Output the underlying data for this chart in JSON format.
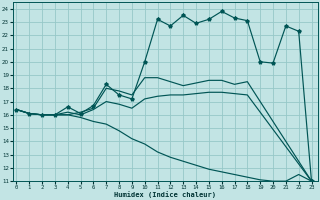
{
  "xlabel": "Humidex (Indice chaleur)",
  "xlim": [
    -0.3,
    23.5
  ],
  "ylim": [
    11,
    24.5
  ],
  "yticks": [
    11,
    12,
    13,
    14,
    15,
    16,
    17,
    18,
    19,
    20,
    21,
    22,
    23,
    24
  ],
  "xticks": [
    0,
    1,
    2,
    3,
    4,
    5,
    6,
    7,
    8,
    9,
    10,
    11,
    12,
    13,
    14,
    15,
    16,
    17,
    18,
    19,
    20,
    21,
    22,
    23
  ],
  "bg_color": "#c2e4e4",
  "grid_color": "#96c8c8",
  "line_color": "#005555",
  "curve1_x": [
    0,
    1,
    2,
    3,
    4,
    5,
    6,
    7,
    8,
    9,
    10,
    11,
    12,
    13,
    14,
    15,
    16,
    17,
    18,
    19,
    20,
    21,
    22,
    23
  ],
  "curve1_y": [
    16.4,
    16.1,
    16.0,
    16.0,
    16.6,
    16.1,
    16.7,
    18.3,
    17.5,
    17.2,
    20.0,
    23.2,
    22.7,
    23.5,
    22.9,
    23.2,
    23.8,
    23.3,
    23.1,
    20.0,
    19.9,
    22.7,
    22.3,
    11.0
  ],
  "curve2_x": [
    0,
    1,
    2,
    3,
    4,
    5,
    6,
    7,
    8,
    9,
    10,
    11,
    12,
    13,
    14,
    15,
    16,
    17,
    18,
    19,
    20,
    21,
    22,
    23
  ],
  "curve2_y": [
    16.4,
    16.1,
    16.0,
    16.0,
    16.0,
    15.8,
    15.5,
    15.3,
    14.8,
    14.2,
    13.8,
    13.2,
    12.8,
    12.5,
    12.2,
    11.9,
    11.7,
    11.5,
    11.3,
    11.1,
    11.0,
    11.0,
    11.5,
    11.0
  ],
  "curve3_x": [
    0,
    1,
    2,
    3,
    4,
    5,
    6,
    7,
    8,
    9,
    10,
    11,
    12,
    13,
    14,
    15,
    16,
    17,
    18,
    23
  ],
  "curve3_y": [
    16.4,
    16.1,
    16.0,
    16.0,
    16.2,
    16.0,
    16.4,
    17.0,
    16.8,
    16.5,
    17.2,
    17.4,
    17.5,
    17.5,
    17.6,
    17.7,
    17.7,
    17.6,
    17.5,
    11.0
  ],
  "curve4_x": [
    0,
    1,
    2,
    3,
    4,
    5,
    6,
    7,
    8,
    9,
    10,
    11,
    12,
    13,
    14,
    15,
    16,
    17,
    18,
    23
  ],
  "curve4_y": [
    16.4,
    16.1,
    16.0,
    16.0,
    16.0,
    16.2,
    16.5,
    18.0,
    17.8,
    17.5,
    18.8,
    18.8,
    18.5,
    18.2,
    18.4,
    18.6,
    18.6,
    18.3,
    18.5,
    11.0
  ]
}
